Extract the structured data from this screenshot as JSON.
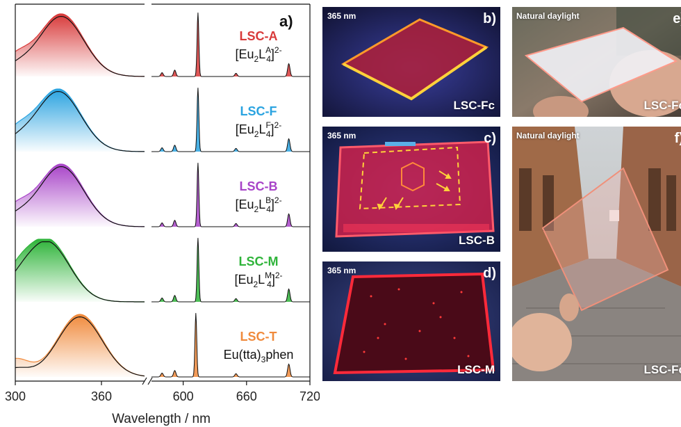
{
  "figure": {
    "panel_a_tag": "a)",
    "xlabel": "Wavelength / nm",
    "samples": [
      {
        "name": "LSC-A",
        "formula_pre": "[Eu",
        "sub1": "2",
        "mid": "L",
        "sup1": "A",
        "sub2": "4",
        "post": "]",
        "sup2": "2-",
        "color": "#d83a3a"
      },
      {
        "name": "LSC-F",
        "formula_pre": "[Eu",
        "sub1": "2",
        "mid": "L",
        "sup1": "F",
        "sub2": "4",
        "post": "]",
        "sup2": "2-",
        "color": "#2aa3e0"
      },
      {
        "name": "LSC-B",
        "formula_pre": "[Eu",
        "sub1": "2",
        "mid": "L",
        "sup1": "B",
        "sub2": "4",
        "post": "]",
        "sup2": "2-",
        "color": "#a844c8"
      },
      {
        "name": "LSC-M",
        "formula_pre": "[Eu",
        "sub1": "2",
        "mid": "L",
        "sup1": "M",
        "sub2": "4",
        "post": "]",
        "sup2": "2-",
        "color": "#2fb43a"
      },
      {
        "name": "LSC-T",
        "formula_pre": "Eu(tta)",
        "sub1": "3",
        "mid": "phen",
        "sup1": "",
        "sub2": "",
        "post": "",
        "sup2": "",
        "color": "#f08a3c"
      }
    ]
  },
  "chart_data": {
    "type": "line",
    "xlabel": "Wavelength / nm",
    "segments": [
      {
        "x_range": [
          300,
          390
        ],
        "ticks": [
          300,
          360
        ]
      },
      {
        "x_range": [
          570,
          720
        ],
        "ticks": [
          600,
          660,
          720
        ]
      }
    ],
    "axis_break": true,
    "series": [
      {
        "name": "LSC-A",
        "absorption_peak_nm": 332,
        "emission_peak_nm": 614,
        "emission_minor_nm": [
          580,
          592,
          650,
          700
        ]
      },
      {
        "name": "LSC-F",
        "absorption_peak_nm": 330,
        "emission_peak_nm": 614,
        "emission_minor_nm": [
          580,
          592,
          650,
          700
        ]
      },
      {
        "name": "LSC-B",
        "absorption_peak_nm": 332,
        "emission_peak_nm": 614,
        "emission_minor_nm": [
          580,
          592,
          650,
          700
        ]
      },
      {
        "name": "LSC-M",
        "absorption_peak_nm": 322,
        "emission_peak_nm": 614,
        "emission_minor_nm": [
          580,
          592,
          650,
          700
        ]
      },
      {
        "name": "LSC-T",
        "absorption_peak_nm": 345,
        "emission_peak_nm": 612,
        "emission_minor_nm": [
          580,
          592,
          650,
          700
        ]
      }
    ]
  },
  "photos": {
    "b": {
      "uv": "365 nm",
      "tag": "b)",
      "name": "LSC-Fc"
    },
    "c": {
      "uv": "365 nm",
      "tag": "c)",
      "name": "LSC-B"
    },
    "d": {
      "uv": "365 nm",
      "tag": "d)",
      "name": "LSC-M"
    },
    "e": {
      "light": "Natural daylight",
      "tag": "e)",
      "name": "LSC-Fc"
    },
    "f": {
      "light": "Natural daylight",
      "tag": "f)",
      "name": "LSC-Fc"
    }
  }
}
